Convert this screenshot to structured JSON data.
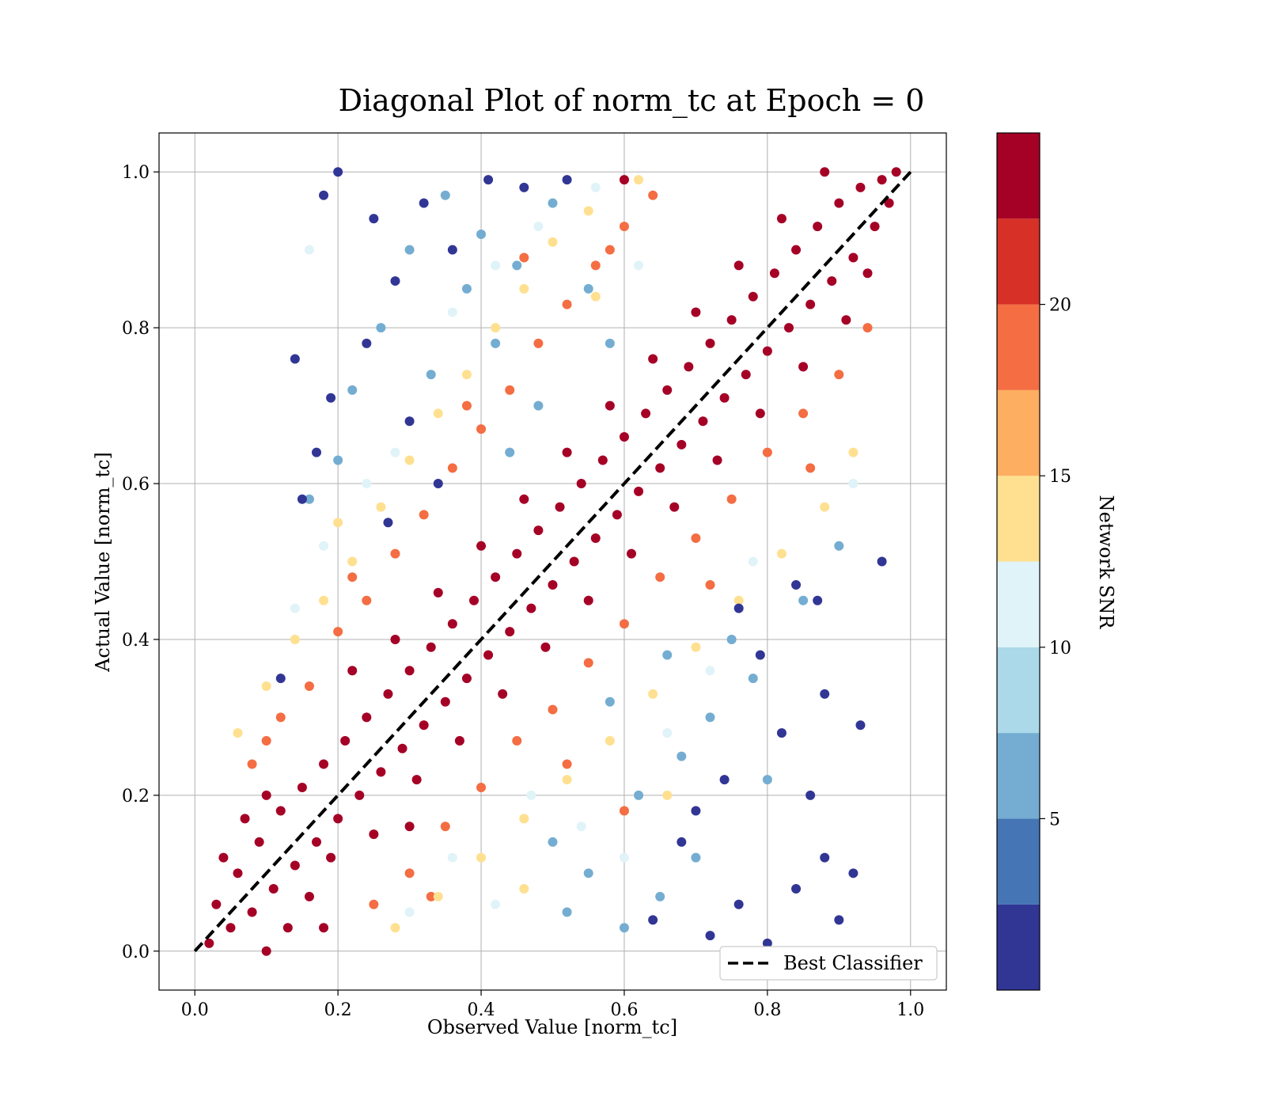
{
  "chart_data": {
    "type": "scatter",
    "title": "Diagonal Plot of norm_tc at Epoch = 0",
    "xlabel": "Observed Value [norm_tc]",
    "ylabel": "Actual Value [norm_tc]",
    "xlim": [
      -0.05,
      1.05
    ],
    "ylim": [
      -0.05,
      1.05
    ],
    "x_ticks": [
      "0.0",
      "0.2",
      "0.4",
      "0.6",
      "0.8",
      "1.0"
    ],
    "y_ticks": [
      "0.0",
      "0.2",
      "0.4",
      "0.6",
      "0.8",
      "1.0"
    ],
    "grid": true,
    "reference_line": {
      "label": "Best Classifier",
      "x": [
        0,
        1
      ],
      "y": [
        0,
        1
      ],
      "style": "dashed",
      "color": "#000000"
    },
    "legend": {
      "placement": "lower-right",
      "entries": [
        "Best Classifier"
      ]
    },
    "colorbar": {
      "label": "Network SNR",
      "range": [
        0,
        25
      ],
      "ticks": [
        "5",
        "10",
        "15",
        "20"
      ],
      "tick_values": [
        5,
        10,
        15,
        20
      ],
      "bins": [
        {
          "from": 0.0,
          "to": 2.5,
          "color": "#313695"
        },
        {
          "from": 2.5,
          "to": 5.0,
          "color": "#4575b4"
        },
        {
          "from": 5.0,
          "to": 7.5,
          "color": "#74add1"
        },
        {
          "from": 7.5,
          "to": 10.0,
          "color": "#abd9e9"
        },
        {
          "from": 10.0,
          "to": 12.5,
          "color": "#e0f3f8"
        },
        {
          "from": 12.5,
          "to": 15.0,
          "color": "#fee090"
        },
        {
          "from": 15.0,
          "to": 17.5,
          "color": "#fdae61"
        },
        {
          "from": 17.5,
          "to": 20.0,
          "color": "#f46d43"
        },
        {
          "from": 20.0,
          "to": 22.5,
          "color": "#d73027"
        },
        {
          "from": 22.5,
          "to": 25.0,
          "color": "#a50026"
        }
      ]
    },
    "series": [
      {
        "description": "high-SNR core along the diagonal",
        "color": "#a50026",
        "points": [
          [
            0.02,
            0.01
          ],
          [
            0.03,
            0.06
          ],
          [
            0.05,
            0.03
          ],
          [
            0.06,
            0.1
          ],
          [
            0.08,
            0.05
          ],
          [
            0.09,
            0.14
          ],
          [
            0.11,
            0.08
          ],
          [
            0.12,
            0.18
          ],
          [
            0.14,
            0.11
          ],
          [
            0.15,
            0.21
          ],
          [
            0.17,
            0.14
          ],
          [
            0.18,
            0.24
          ],
          [
            0.2,
            0.17
          ],
          [
            0.21,
            0.27
          ],
          [
            0.23,
            0.2
          ],
          [
            0.24,
            0.3
          ],
          [
            0.26,
            0.23
          ],
          [
            0.27,
            0.33
          ],
          [
            0.29,
            0.26
          ],
          [
            0.3,
            0.36
          ],
          [
            0.32,
            0.29
          ],
          [
            0.33,
            0.39
          ],
          [
            0.35,
            0.32
          ],
          [
            0.36,
            0.42
          ],
          [
            0.38,
            0.35
          ],
          [
            0.39,
            0.45
          ],
          [
            0.41,
            0.38
          ],
          [
            0.42,
            0.48
          ],
          [
            0.44,
            0.41
          ],
          [
            0.45,
            0.51
          ],
          [
            0.47,
            0.44
          ],
          [
            0.48,
            0.54
          ],
          [
            0.5,
            0.47
          ],
          [
            0.51,
            0.57
          ],
          [
            0.53,
            0.5
          ],
          [
            0.54,
            0.6
          ],
          [
            0.56,
            0.53
          ],
          [
            0.57,
            0.63
          ],
          [
            0.59,
            0.56
          ],
          [
            0.6,
            0.66
          ],
          [
            0.62,
            0.59
          ],
          [
            0.63,
            0.69
          ],
          [
            0.65,
            0.62
          ],
          [
            0.66,
            0.72
          ],
          [
            0.68,
            0.65
          ],
          [
            0.69,
            0.75
          ],
          [
            0.71,
            0.68
          ],
          [
            0.72,
            0.78
          ],
          [
            0.74,
            0.71
          ],
          [
            0.75,
            0.81
          ],
          [
            0.77,
            0.74
          ],
          [
            0.78,
            0.84
          ],
          [
            0.8,
            0.77
          ],
          [
            0.81,
            0.87
          ],
          [
            0.83,
            0.8
          ],
          [
            0.84,
            0.9
          ],
          [
            0.86,
            0.83
          ],
          [
            0.87,
            0.93
          ],
          [
            0.89,
            0.86
          ],
          [
            0.9,
            0.96
          ],
          [
            0.92,
            0.89
          ],
          [
            0.93,
            0.98
          ],
          [
            0.95,
            0.93
          ],
          [
            0.96,
            0.99
          ],
          [
            0.97,
            0.96
          ],
          [
            0.98,
            1.0
          ],
          [
            0.04,
            0.12
          ],
          [
            0.07,
            0.17
          ],
          [
            0.1,
            0.2
          ],
          [
            0.13,
            0.03
          ],
          [
            0.16,
            0.07
          ],
          [
            0.19,
            0.12
          ],
          [
            0.22,
            0.36
          ],
          [
            0.25,
            0.15
          ],
          [
            0.28,
            0.4
          ],
          [
            0.31,
            0.22
          ],
          [
            0.34,
            0.46
          ],
          [
            0.37,
            0.27
          ],
          [
            0.4,
            0.52
          ],
          [
            0.43,
            0.33
          ],
          [
            0.46,
            0.58
          ],
          [
            0.49,
            0.39
          ],
          [
            0.52,
            0.64
          ],
          [
            0.55,
            0.45
          ],
          [
            0.58,
            0.7
          ],
          [
            0.61,
            0.51
          ],
          [
            0.64,
            0.76
          ],
          [
            0.67,
            0.57
          ],
          [
            0.7,
            0.82
          ],
          [
            0.73,
            0.63
          ],
          [
            0.76,
            0.88
          ],
          [
            0.79,
            0.69
          ],
          [
            0.82,
            0.94
          ],
          [
            0.85,
            0.75
          ],
          [
            0.88,
            1.0
          ],
          [
            0.91,
            0.81
          ],
          [
            0.94,
            0.87
          ],
          [
            0.6,
            0.99
          ],
          [
            0.18,
            0.03
          ],
          [
            0.1,
            0.0
          ],
          [
            0.3,
            0.16
          ]
        ]
      },
      {
        "description": "mid-SNR band bordering the core",
        "color": "#f46d43",
        "points": [
          [
            0.08,
            0.24
          ],
          [
            0.12,
            0.3
          ],
          [
            0.16,
            0.34
          ],
          [
            0.2,
            0.41
          ],
          [
            0.24,
            0.45
          ],
          [
            0.28,
            0.51
          ],
          [
            0.32,
            0.56
          ],
          [
            0.36,
            0.62
          ],
          [
            0.4,
            0.67
          ],
          [
            0.44,
            0.72
          ],
          [
            0.48,
            0.78
          ],
          [
            0.52,
            0.83
          ],
          [
            0.56,
            0.88
          ],
          [
            0.6,
            0.93
          ],
          [
            0.64,
            0.97
          ],
          [
            0.25,
            0.06
          ],
          [
            0.3,
            0.1
          ],
          [
            0.35,
            0.16
          ],
          [
            0.4,
            0.21
          ],
          [
            0.45,
            0.27
          ],
          [
            0.5,
            0.31
          ],
          [
            0.55,
            0.37
          ],
          [
            0.6,
            0.42
          ],
          [
            0.65,
            0.48
          ],
          [
            0.7,
            0.53
          ],
          [
            0.75,
            0.58
          ],
          [
            0.8,
            0.64
          ],
          [
            0.85,
            0.69
          ],
          [
            0.9,
            0.74
          ],
          [
            0.94,
            0.8
          ],
          [
            0.1,
            0.27
          ],
          [
            0.22,
            0.48
          ],
          [
            0.38,
            0.7
          ],
          [
            0.58,
            0.9
          ],
          [
            0.33,
            0.07
          ],
          [
            0.52,
            0.24
          ],
          [
            0.72,
            0.47
          ],
          [
            0.86,
            0.62
          ],
          [
            0.46,
            0.89
          ],
          [
            0.6,
            0.18
          ]
        ]
      },
      {
        "description": "light, mid-SNR points",
        "color": "#fee090",
        "points": [
          [
            0.06,
            0.28
          ],
          [
            0.1,
            0.34
          ],
          [
            0.14,
            0.4
          ],
          [
            0.18,
            0.45
          ],
          [
            0.22,
            0.5
          ],
          [
            0.26,
            0.57
          ],
          [
            0.3,
            0.63
          ],
          [
            0.34,
            0.69
          ],
          [
            0.38,
            0.74
          ],
          [
            0.42,
            0.8
          ],
          [
            0.46,
            0.85
          ],
          [
            0.5,
            0.91
          ],
          [
            0.55,
            0.95
          ],
          [
            0.62,
            0.99
          ],
          [
            0.28,
            0.03
          ],
          [
            0.34,
            0.07
          ],
          [
            0.4,
            0.12
          ],
          [
            0.46,
            0.17
          ],
          [
            0.52,
            0.22
          ],
          [
            0.58,
            0.27
          ],
          [
            0.64,
            0.33
          ],
          [
            0.7,
            0.39
          ],
          [
            0.76,
            0.45
          ],
          [
            0.82,
            0.51
          ],
          [
            0.88,
            0.57
          ],
          [
            0.92,
            0.64
          ],
          [
            0.2,
            0.55
          ],
          [
            0.46,
            0.08
          ],
          [
            0.66,
            0.2
          ],
          [
            0.56,
            0.84
          ]
        ]
      },
      {
        "description": "low-SNR scatter far from the diagonal",
        "color": "#74add1",
        "points": [
          [
            0.35,
            0.97
          ],
          [
            0.4,
            0.92
          ],
          [
            0.45,
            0.88
          ],
          [
            0.5,
            0.96
          ],
          [
            0.55,
            0.85
          ],
          [
            0.42,
            0.78
          ],
          [
            0.38,
            0.85
          ],
          [
            0.48,
            0.7
          ],
          [
            0.33,
            0.74
          ],
          [
            0.3,
            0.9
          ],
          [
            0.26,
            0.8
          ],
          [
            0.22,
            0.72
          ],
          [
            0.2,
            0.63
          ],
          [
            0.16,
            0.58
          ],
          [
            0.44,
            0.64
          ],
          [
            0.58,
            0.78
          ],
          [
            0.6,
            0.03
          ],
          [
            0.55,
            0.1
          ],
          [
            0.5,
            0.14
          ],
          [
            0.65,
            0.07
          ],
          [
            0.7,
            0.12
          ],
          [
            0.62,
            0.2
          ],
          [
            0.68,
            0.25
          ],
          [
            0.72,
            0.3
          ],
          [
            0.78,
            0.35
          ],
          [
            0.8,
            0.22
          ],
          [
            0.75,
            0.4
          ],
          [
            0.85,
            0.45
          ],
          [
            0.9,
            0.52
          ],
          [
            0.66,
            0.38
          ],
          [
            0.52,
            0.05
          ],
          [
            0.58,
            0.32
          ]
        ]
      },
      {
        "description": "lowest-SNR outliers",
        "color": "#313695",
        "points": [
          [
            0.2,
            1.0
          ],
          [
            0.18,
            0.97
          ],
          [
            0.25,
            0.94
          ],
          [
            0.28,
            0.86
          ],
          [
            0.24,
            0.78
          ],
          [
            0.19,
            0.71
          ],
          [
            0.17,
            0.64
          ],
          [
            0.15,
            0.58
          ],
          [
            0.14,
            0.76
          ],
          [
            0.32,
            0.96
          ],
          [
            0.36,
            0.9
          ],
          [
            0.41,
            0.99
          ],
          [
            0.3,
            0.68
          ],
          [
            0.34,
            0.6
          ],
          [
            0.27,
            0.55
          ],
          [
            0.12,
            0.35
          ],
          [
            0.46,
            0.98
          ],
          [
            0.52,
            0.99
          ],
          [
            0.72,
            0.02
          ],
          [
            0.76,
            0.06
          ],
          [
            0.8,
            0.01
          ],
          [
            0.84,
            0.08
          ],
          [
            0.88,
            0.12
          ],
          [
            0.9,
            0.04
          ],
          [
            0.86,
            0.2
          ],
          [
            0.82,
            0.28
          ],
          [
            0.79,
            0.38
          ],
          [
            0.76,
            0.44
          ],
          [
            0.84,
            0.47
          ],
          [
            0.88,
            0.33
          ],
          [
            0.93,
            0.29
          ],
          [
            0.87,
            0.45
          ],
          [
            0.92,
            0.1
          ],
          [
            0.7,
            0.18
          ],
          [
            0.74,
            0.22
          ],
          [
            0.68,
            0.14
          ],
          [
            0.64,
            0.04
          ],
          [
            0.96,
            0.5
          ]
        ]
      },
      {
        "description": "very light points",
        "color": "#e0f3f8",
        "points": [
          [
            0.3,
            0.05
          ],
          [
            0.36,
            0.12
          ],
          [
            0.42,
            0.06
          ],
          [
            0.47,
            0.2
          ],
          [
            0.54,
            0.16
          ],
          [
            0.6,
            0.12
          ],
          [
            0.66,
            0.28
          ],
          [
            0.72,
            0.36
          ],
          [
            0.78,
            0.5
          ],
          [
            0.36,
            0.82
          ],
          [
            0.42,
            0.88
          ],
          [
            0.48,
            0.93
          ],
          [
            0.28,
            0.64
          ],
          [
            0.24,
            0.6
          ],
          [
            0.18,
            0.52
          ],
          [
            0.14,
            0.44
          ],
          [
            0.62,
            0.88
          ],
          [
            0.56,
            0.98
          ],
          [
            0.16,
            0.9
          ],
          [
            0.92,
            0.6
          ]
        ]
      }
    ]
  }
}
